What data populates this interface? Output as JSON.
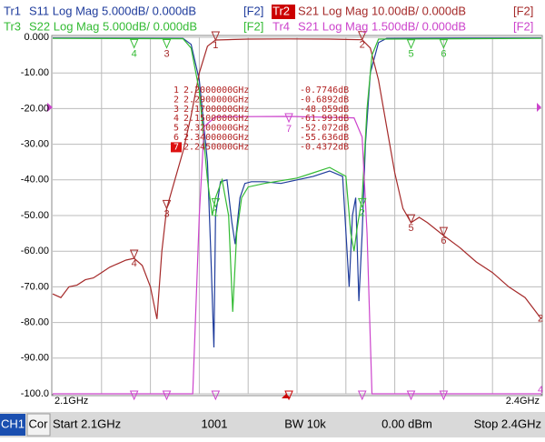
{
  "chart_data": {
    "type": "line",
    "xlim": [
      2.1,
      2.4
    ],
    "ylim": [
      -100,
      0
    ],
    "xticks": [
      {
        "value": 2.1,
        "label": "2.1GHz"
      },
      {
        "value": 2.4,
        "label": "2.4GHz"
      }
    ],
    "yticks": [
      {
        "value": 0,
        "label": "0.000"
      },
      {
        "value": -10,
        "label": "-10.00"
      },
      {
        "value": -20,
        "label": "-20.00"
      },
      {
        "value": -30,
        "label": "-30.00"
      },
      {
        "value": -40,
        "label": "-40.00"
      },
      {
        "value": -50,
        "label": "-50.00"
      },
      {
        "value": -60,
        "label": "-60.00"
      },
      {
        "value": -70,
        "label": "-70.00"
      },
      {
        "value": -80,
        "label": "-80.00"
      },
      {
        "value": -90,
        "label": "-90.00"
      },
      {
        "value": -100,
        "label": "-100.0"
      }
    ],
    "grid": true,
    "series": [
      {
        "name": "Tr1",
        "desc": "S11 Log Mag 5.000dB/ 0.000dB",
        "tag": "[F2]",
        "color": "#1f3c9c",
        "x": [
          2.1,
          2.18,
          2.185,
          2.19,
          2.195,
          2.197,
          2.199,
          2.2,
          2.203,
          2.207,
          2.21,
          2.212,
          2.215,
          2.218,
          2.222,
          2.23,
          2.24,
          2.25,
          2.26,
          2.27,
          2.278,
          2.282,
          2.284,
          2.286,
          2.288,
          2.29,
          2.292,
          2.295,
          2.3,
          2.305,
          2.4
        ],
        "values": [
          -0.2,
          -0.3,
          -2,
          -12,
          -35,
          -60,
          -87,
          -50,
          -40.5,
          -40,
          -52,
          -58,
          -45,
          -41,
          -40.5,
          -40.5,
          -41,
          -40,
          -39,
          -37.5,
          -39,
          -70,
          -50,
          -45,
          -74,
          -55,
          -30,
          -10,
          -1.5,
          -0.3,
          -0.2
        ]
      },
      {
        "name": "Tr2",
        "desc": "S21 Log Mag 10.00dB/ 0.000dB",
        "tag": "[F2]",
        "color": "#a52a2a",
        "end_label": "2",
        "x": [
          2.1,
          2.105,
          2.11,
          2.115,
          2.12,
          2.125,
          2.13,
          2.135,
          2.14,
          2.145,
          2.15,
          2.155,
          2.16,
          2.164,
          2.167,
          2.17,
          2.175,
          2.18,
          2.185,
          2.19,
          2.195,
          2.2,
          2.22,
          2.245,
          2.27,
          2.29,
          2.295,
          2.3,
          2.305,
          2.31,
          2.315,
          2.32,
          2.325,
          2.33,
          2.34,
          2.35,
          2.36,
          2.37,
          2.38,
          2.39,
          2.4
        ],
        "values": [
          -72,
          -73,
          -70,
          -69.5,
          -68,
          -67.5,
          -66,
          -64.5,
          -63.5,
          -62.5,
          -62,
          -64,
          -70,
          -79,
          -60,
          -48,
          -40,
          -32,
          -22,
          -10,
          -2.5,
          -0.77,
          -0.5,
          -0.45,
          -0.5,
          -0.69,
          -3,
          -12,
          -25,
          -38,
          -48,
          -52,
          -50.5,
          -52,
          -55.6,
          -59,
          -63,
          -66,
          -70,
          -73,
          -79
        ]
      },
      {
        "name": "Tr3",
        "desc": "S22 Log Mag 5.000dB/ 0.000dB",
        "tag": "[F2]",
        "color": "#33bb33",
        "x": [
          2.1,
          2.18,
          2.185,
          2.19,
          2.195,
          2.198,
          2.2,
          2.204,
          2.208,
          2.2105,
          2.213,
          2.216,
          2.22,
          2.23,
          2.25,
          2.26,
          2.27,
          2.28,
          2.283,
          2.285,
          2.287,
          2.29,
          2.293,
          2.296,
          2.3,
          2.4
        ],
        "values": [
          -0.3,
          -0.4,
          -3,
          -15,
          -40,
          -50,
          -45,
          -40,
          -50,
          -77,
          -55,
          -45,
          -42,
          -41,
          -39.5,
          -38,
          -36.5,
          -39,
          -55,
          -60,
          -53,
          -45,
          -20,
          -5,
          -0.5,
          -0.3
        ]
      },
      {
        "name": "Tr4",
        "desc": "S21 Log Mag 1.500dB/ 0.000dB",
        "tag": "[F2]",
        "color": "#cc44cc",
        "end_label": "4",
        "x": [
          2.1,
          2.186,
          2.19,
          2.193,
          2.2,
          2.245,
          2.285,
          2.29,
          2.293,
          2.296,
          2.4
        ],
        "values": [
          -100,
          -100,
          -50,
          -25,
          -22.3,
          -22.2,
          -22.6,
          -28,
          -55,
          -100,
          -100
        ]
      }
    ],
    "markers": [
      {
        "id": "1",
        "freq": {
          "value": 2.2,
          "label": "2.2000000GHz"
        },
        "value": {
          "value": -0.7746,
          "label": "-0.7746dB"
        }
      },
      {
        "id": "2",
        "freq": {
          "value": 2.29,
          "label": "2.2900000GHz"
        },
        "value": {
          "value": -0.6892,
          "label": "-0.6892dB"
        }
      },
      {
        "id": "3",
        "freq": {
          "value": 2.17,
          "label": "2.1700000GHz"
        },
        "value": {
          "value": -48.059,
          "label": "-48.059dB"
        }
      },
      {
        "id": "4",
        "freq": {
          "value": 2.15,
          "label": "2.1500000GHz"
        },
        "value": {
          "value": -61.993,
          "label": "-61.993dB"
        }
      },
      {
        "id": "5",
        "freq": {
          "value": 2.32,
          "label": "2.3200000GHz"
        },
        "value": {
          "value": -52.072,
          "label": "-52.072dB"
        }
      },
      {
        "id": "6",
        "freq": {
          "value": 2.34,
          "label": "2.3400000GHz"
        },
        "value": {
          "value": -55.636,
          "label": "-55.636dB"
        }
      },
      {
        "id": "7",
        "freq": {
          "value": 2.245,
          "label": "2.2450000GHz"
        },
        "value": {
          "value": -0.4372,
          "label": "-0.4372dB"
        },
        "active": true
      }
    ]
  },
  "status_bar": {
    "channel": "CH1",
    "correction": "Cor",
    "start": "Start 2.1GHz",
    "points": "1001",
    "bandwidth": "BW 10k",
    "power": "0.00 dBm",
    "stop": "Stop 2.4GHz"
  }
}
